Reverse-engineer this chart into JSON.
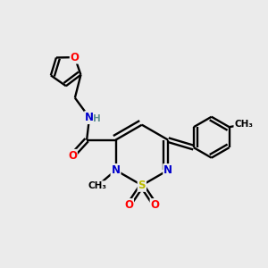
{
  "bg_color": "#ebebeb",
  "atom_colors": {
    "C": "#000000",
    "N": "#0000cc",
    "O": "#ff0000",
    "S": "#bbbb00",
    "H": "#5f8f8f"
  },
  "figsize": [
    3.0,
    3.0
  ],
  "dpi": 100
}
